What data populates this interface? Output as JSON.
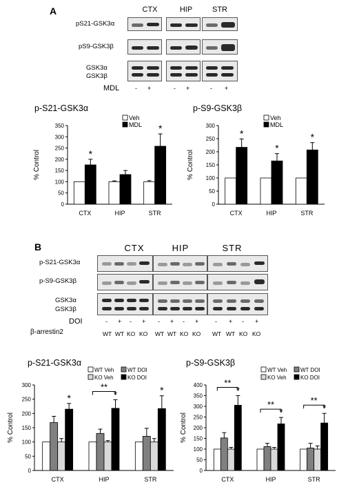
{
  "panelA": {
    "letter": "A",
    "regions": [
      "CTX",
      "HIP",
      "STR"
    ],
    "blot_labels": [
      "pS21-GSK3α",
      "pS9-GSK3β",
      "GSK3α",
      "GSK3β"
    ],
    "treatment_label": "MDL",
    "treatment_signs": [
      "-",
      "+",
      "-",
      "+",
      "-",
      "+"
    ]
  },
  "panelB": {
    "letter": "B",
    "regions": [
      "CTX",
      "HIP",
      "STR"
    ],
    "blot_labels": [
      "p-S21-GSK3α",
      "p-S9-GSK3β",
      "GSK3α",
      "GSK3β"
    ],
    "treatment_label": "DOI",
    "treatment_signs": [
      "-",
      "+",
      "-",
      "+",
      "-",
      "+",
      "-",
      "+",
      "-",
      "+",
      "-",
      "+"
    ],
    "genotype_label": "β-arrestin2",
    "genotypes": [
      "WT",
      "WT",
      "KO",
      "KO",
      "WT",
      "WT",
      "KO",
      "KO",
      "WT",
      "WT",
      "KO",
      "KO"
    ]
  },
  "chart_data": [
    {
      "type": "bar",
      "title": "p-S21-GSK3α",
      "ylabel": "% Control",
      "categories": [
        "CTX",
        "HIP",
        "STR"
      ],
      "ylim": [
        0,
        350
      ],
      "yticks": [
        0,
        50,
        100,
        150,
        200,
        250,
        300,
        350
      ],
      "series": [
        {
          "name": "Veh",
          "color": "#ffffff",
          "values": [
            100,
            100,
            100
          ],
          "errors": [
            0,
            4,
            5
          ]
        },
        {
          "name": "MDL",
          "color": "#000000",
          "values": [
            175,
            132,
            258
          ],
          "errors": [
            25,
            18,
            55
          ]
        }
      ],
      "significance": [
        "*",
        "",
        "*"
      ],
      "legend": "top-right"
    },
    {
      "type": "bar",
      "title": "p-S9-GSK3β",
      "ylabel": "% Control",
      "categories": [
        "CTX",
        "HIP",
        "STR"
      ],
      "ylim": [
        0,
        300
      ],
      "yticks": [
        0,
        50,
        100,
        150,
        200,
        250,
        300
      ],
      "series": [
        {
          "name": "Veh",
          "color": "#ffffff",
          "values": [
            100,
            100,
            100
          ],
          "errors": [
            0,
            0,
            0
          ]
        },
        {
          "name": "MDL",
          "color": "#000000",
          "values": [
            217,
            165,
            207
          ],
          "errors": [
            32,
            28,
            28
          ]
        }
      ],
      "significance": [
        "*",
        "*",
        "*"
      ],
      "legend": "top-right"
    },
    {
      "type": "bar",
      "title": "p-S21-GSK3α",
      "ylabel": "% Control",
      "categories": [
        "CTX",
        "HIP",
        "STR"
      ],
      "ylim": [
        0,
        300
      ],
      "yticks": [
        0,
        50,
        100,
        150,
        200,
        250,
        300
      ],
      "series": [
        {
          "name": "WT Veh",
          "color": "#ffffff",
          "values": [
            100,
            100,
            100
          ],
          "errors": [
            0,
            0,
            0
          ]
        },
        {
          "name": "WT DOI",
          "color": "#808080",
          "values": [
            168,
            130,
            120
          ],
          "errors": [
            22,
            15,
            28
          ]
        },
        {
          "name": "KO Veh",
          "color": "#d9d9d9",
          "values": [
            100,
            100,
            100
          ],
          "errors": [
            12,
            5,
            12
          ]
        },
        {
          "name": "KO DOI",
          "color": "#000000",
          "values": [
            215,
            218,
            217
          ],
          "errors": [
            20,
            30,
            45
          ]
        }
      ],
      "significance": [
        "*",
        "*",
        "*"
      ],
      "brackets": [
        {
          "category": "HIP",
          "label": "**"
        }
      ],
      "legend": "top-right"
    },
    {
      "type": "bar",
      "title": "p-S9-GSK3β",
      "ylabel": "% Control",
      "categories": [
        "CTX",
        "HIP",
        "STR"
      ],
      "ylim": [
        0,
        400
      ],
      "yticks": [
        0,
        50,
        100,
        150,
        200,
        250,
        300,
        350,
        400
      ],
      "series": [
        {
          "name": "WT Veh",
          "color": "#ffffff",
          "values": [
            100,
            100,
            100
          ],
          "errors": [
            0,
            0,
            0
          ]
        },
        {
          "name": "WT DOI",
          "color": "#808080",
          "values": [
            152,
            112,
            105
          ],
          "errors": [
            25,
            15,
            22
          ]
        },
        {
          "name": "KO Veh",
          "color": "#d9d9d9",
          "values": [
            100,
            100,
            100
          ],
          "errors": [
            8,
            8,
            15
          ]
        },
        {
          "name": "KO DOI",
          "color": "#000000",
          "values": [
            305,
            218,
            222
          ],
          "errors": [
            45,
            30,
            45
          ]
        }
      ],
      "significance": [
        "*",
        "*",
        "*"
      ],
      "brackets": [
        {
          "category": "CTX",
          "label": "**"
        },
        {
          "category": "HIP",
          "label": "**"
        },
        {
          "category": "STR",
          "label": "**"
        }
      ],
      "legend": "top-right"
    }
  ]
}
